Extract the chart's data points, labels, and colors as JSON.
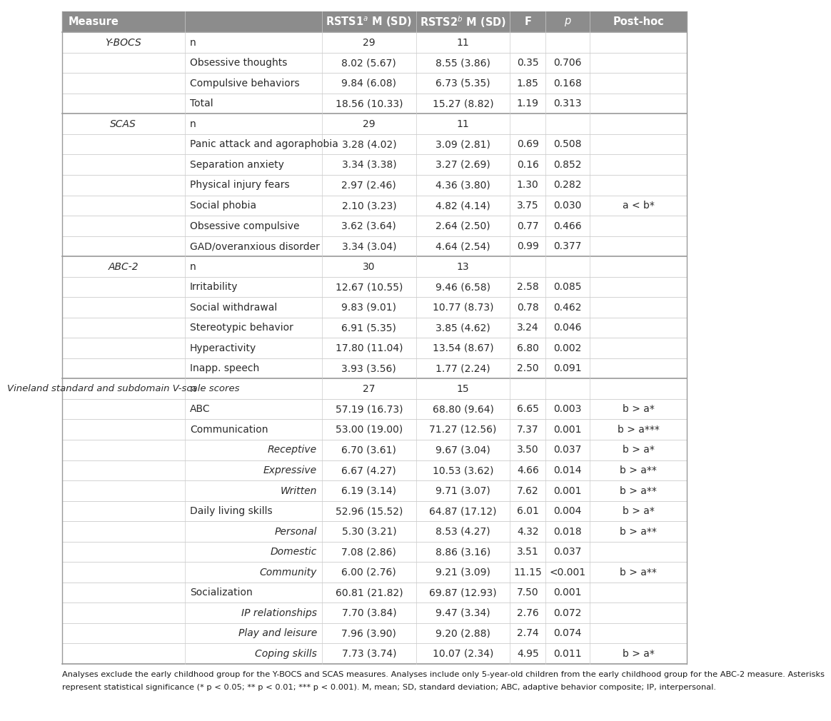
{
  "header_bg": "#8c8c8c",
  "text_color": "#2b2b2b",
  "border_color_heavy": "#9a9a9a",
  "border_color_light": "#cccccc",
  "rows": [
    {
      "col1": "Y-BOCS",
      "col2": "n",
      "col3": "29",
      "col4": "11",
      "col5": "",
      "col6": "",
      "col7": "",
      "c1_italic": true,
      "c2_italic": false,
      "c2_indent": false,
      "section_break": false
    },
    {
      "col1": "",
      "col2": "Obsessive thoughts",
      "col3": "8.02 (5.67)",
      "col4": "8.55 (3.86)",
      "col5": "0.35",
      "col6": "0.706",
      "col7": "",
      "c1_italic": false,
      "c2_italic": false,
      "c2_indent": false,
      "section_break": false
    },
    {
      "col1": "",
      "col2": "Compulsive behaviors",
      "col3": "9.84 (6.08)",
      "col4": "6.73 (5.35)",
      "col5": "1.85",
      "col6": "0.168",
      "col7": "",
      "c1_italic": false,
      "c2_italic": false,
      "c2_indent": false,
      "section_break": false
    },
    {
      "col1": "",
      "col2": "Total",
      "col3": "18.56 (10.33)",
      "col4": "15.27 (8.82)",
      "col5": "1.19",
      "col6": "0.313",
      "col7": "",
      "c1_italic": false,
      "c2_italic": false,
      "c2_indent": false,
      "section_break": false
    },
    {
      "col1": "SCAS",
      "col2": "n",
      "col3": "29",
      "col4": "11",
      "col5": "",
      "col6": "",
      "col7": "",
      "c1_italic": true,
      "c2_italic": false,
      "c2_indent": false,
      "section_break": true
    },
    {
      "col1": "",
      "col2": "Panic attack and agoraphobia",
      "col3": "3.28 (4.02)",
      "col4": "3.09 (2.81)",
      "col5": "0.69",
      "col6": "0.508",
      "col7": "",
      "c1_italic": false,
      "c2_italic": false,
      "c2_indent": false,
      "section_break": false
    },
    {
      "col1": "",
      "col2": "Separation anxiety",
      "col3": "3.34 (3.38)",
      "col4": "3.27 (2.69)",
      "col5": "0.16",
      "col6": "0.852",
      "col7": "",
      "c1_italic": false,
      "c2_italic": false,
      "c2_indent": false,
      "section_break": false
    },
    {
      "col1": "",
      "col2": "Physical injury fears",
      "col3": "2.97 (2.46)",
      "col4": "4.36 (3.80)",
      "col5": "1.30",
      "col6": "0.282",
      "col7": "",
      "c1_italic": false,
      "c2_italic": false,
      "c2_indent": false,
      "section_break": false
    },
    {
      "col1": "",
      "col2": "Social phobia",
      "col3": "2.10 (3.23)",
      "col4": "4.82 (4.14)",
      "col5": "3.75",
      "col6": "0.030",
      "col7": "a < b*",
      "c1_italic": false,
      "c2_italic": false,
      "c2_indent": false,
      "section_break": false
    },
    {
      "col1": "",
      "col2": "Obsessive compulsive",
      "col3": "3.62 (3.64)",
      "col4": "2.64 (2.50)",
      "col5": "0.77",
      "col6": "0.466",
      "col7": "",
      "c1_italic": false,
      "c2_italic": false,
      "c2_indent": false,
      "section_break": false
    },
    {
      "col1": "",
      "col2": "GAD/overanxious disorder",
      "col3": "3.34 (3.04)",
      "col4": "4.64 (2.54)",
      "col5": "0.99",
      "col6": "0.377",
      "col7": "",
      "c1_italic": false,
      "c2_italic": false,
      "c2_indent": false,
      "section_break": false
    },
    {
      "col1": "ABC-2",
      "col2": "n",
      "col3": "30",
      "col4": "13",
      "col5": "",
      "col6": "",
      "col7": "",
      "c1_italic": true,
      "c2_italic": false,
      "c2_indent": false,
      "section_break": true
    },
    {
      "col1": "",
      "col2": "Irritability",
      "col3": "12.67 (10.55)",
      "col4": "9.46 (6.58)",
      "col5": "2.58",
      "col6": "0.085",
      "col7": "",
      "c1_italic": false,
      "c2_italic": false,
      "c2_indent": false,
      "section_break": false
    },
    {
      "col1": "",
      "col2": "Social withdrawal",
      "col3": "9.83 (9.01)",
      "col4": "10.77 (8.73)",
      "col5": "0.78",
      "col6": "0.462",
      "col7": "",
      "c1_italic": false,
      "c2_italic": false,
      "c2_indent": false,
      "section_break": false
    },
    {
      "col1": "",
      "col2": "Stereotypic behavior",
      "col3": "6.91 (5.35)",
      "col4": "3.85 (4.62)",
      "col5": "3.24",
      "col6": "0.046",
      "col7": "",
      "c1_italic": false,
      "c2_italic": false,
      "c2_indent": false,
      "section_break": false
    },
    {
      "col1": "",
      "col2": "Hyperactivity",
      "col3": "17.80 (11.04)",
      "col4": "13.54 (8.67)",
      "col5": "6.80",
      "col6": "0.002",
      "col7": "",
      "c1_italic": false,
      "c2_italic": false,
      "c2_indent": false,
      "section_break": false
    },
    {
      "col1": "",
      "col2": "Inapp. speech",
      "col3": "3.93 (3.56)",
      "col4": "1.77 (2.24)",
      "col5": "2.50",
      "col6": "0.091",
      "col7": "",
      "c1_italic": false,
      "c2_italic": false,
      "c2_indent": false,
      "section_break": false
    },
    {
      "col1": "Vineland standard and subdomain V-scale scores",
      "col2": "n",
      "col3": "27",
      "col4": "15",
      "col5": "",
      "col6": "",
      "col7": "",
      "c1_italic": true,
      "c2_italic": false,
      "c2_indent": false,
      "section_break": true
    },
    {
      "col1": "",
      "col2": "ABC",
      "col3": "57.19 (16.73)",
      "col4": "68.80 (9.64)",
      "col5": "6.65",
      "col6": "0.003",
      "col7": "b > a*",
      "c1_italic": false,
      "c2_italic": false,
      "c2_indent": false,
      "section_break": false
    },
    {
      "col1": "",
      "col2": "Communication",
      "col3": "53.00 (19.00)",
      "col4": "71.27 (12.56)",
      "col5": "7.37",
      "col6": "0.001",
      "col7": "b > a***",
      "c1_italic": false,
      "c2_italic": false,
      "c2_indent": false,
      "section_break": false
    },
    {
      "col1": "",
      "col2": "Receptive",
      "col3": "6.70 (3.61)",
      "col4": "9.67 (3.04)",
      "col5": "3.50",
      "col6": "0.037",
      "col7": "b > a*",
      "c1_italic": false,
      "c2_italic": true,
      "c2_indent": true,
      "section_break": false
    },
    {
      "col1": "",
      "col2": "Expressive",
      "col3": "6.67 (4.27)",
      "col4": "10.53 (3.62)",
      "col5": "4.66",
      "col6": "0.014",
      "col7": "b > a**",
      "c1_italic": false,
      "c2_italic": true,
      "c2_indent": true,
      "section_break": false
    },
    {
      "col1": "",
      "col2": "Written",
      "col3": "6.19 (3.14)",
      "col4": "9.71 (3.07)",
      "col5": "7.62",
      "col6": "0.001",
      "col7": "b > a**",
      "c1_italic": false,
      "c2_italic": true,
      "c2_indent": true,
      "section_break": false
    },
    {
      "col1": "",
      "col2": "Daily living skills",
      "col3": "52.96 (15.52)",
      "col4": "64.87 (17.12)",
      "col5": "6.01",
      "col6": "0.004",
      "col7": "b > a*",
      "c1_italic": false,
      "c2_italic": false,
      "c2_indent": false,
      "section_break": false
    },
    {
      "col1": "",
      "col2": "Personal",
      "col3": "5.30 (3.21)",
      "col4": "8.53 (4.27)",
      "col5": "4.32",
      "col6": "0.018",
      "col7": "b > a**",
      "c1_italic": false,
      "c2_italic": true,
      "c2_indent": true,
      "section_break": false
    },
    {
      "col1": "",
      "col2": "Domestic",
      "col3": "7.08 (2.86)",
      "col4": "8.86 (3.16)",
      "col5": "3.51",
      "col6": "0.037",
      "col7": "",
      "c1_italic": false,
      "c2_italic": true,
      "c2_indent": true,
      "section_break": false
    },
    {
      "col1": "",
      "col2": "Community",
      "col3": "6.00 (2.76)",
      "col4": "9.21 (3.09)",
      "col5": "11.15",
      "col6": "<0.001",
      "col7": "b > a**",
      "c1_italic": false,
      "c2_italic": true,
      "c2_indent": true,
      "section_break": false
    },
    {
      "col1": "",
      "col2": "Socialization",
      "col3": "60.81 (21.82)",
      "col4": "69.87 (12.93)",
      "col5": "7.50",
      "col6": "0.001",
      "col7": "",
      "c1_italic": false,
      "c2_italic": false,
      "c2_indent": false,
      "section_break": false
    },
    {
      "col1": "",
      "col2": "IP relationships",
      "col3": "7.70 (3.84)",
      "col4": "9.47 (3.34)",
      "col5": "2.76",
      "col6": "0.072",
      "col7": "",
      "c1_italic": false,
      "c2_italic": true,
      "c2_indent": true,
      "section_break": false
    },
    {
      "col1": "",
      "col2": "Play and leisure",
      "col3": "7.96 (3.90)",
      "col4": "9.20 (2.88)",
      "col5": "2.74",
      "col6": "0.074",
      "col7": "",
      "c1_italic": false,
      "c2_italic": true,
      "c2_indent": true,
      "section_break": false
    },
    {
      "col1": "",
      "col2": "Coping skills",
      "col3": "7.73 (3.74)",
      "col4": "10.07 (2.34)",
      "col5": "4.95",
      "col6": "0.011",
      "col7": "b > a*",
      "c1_italic": false,
      "c2_italic": true,
      "c2_indent": true,
      "section_break": false
    }
  ],
  "footnote_line1": "Analyses exclude the early childhood group for the Y-BOCS and SCAS measures. Analyses include only 5-year-old children from the early childhood group for the ABC-2 measure. Asterisks",
  "footnote_line2": "represent statistical significance (* p < 0.05; ** p < 0.01; *** p < 0.001). M, mean; SD, standard deviation; ABC, adaptive behavior composite; IP, interpersonal."
}
